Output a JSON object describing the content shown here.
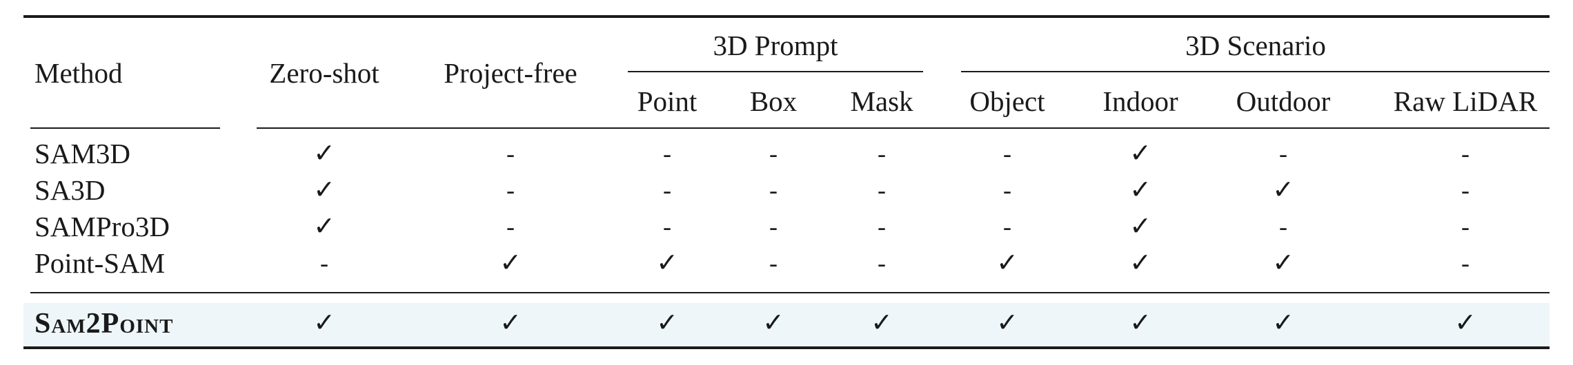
{
  "headers": {
    "method": "Method",
    "zero_shot": "Zero-shot",
    "project_free": "Project-free",
    "prompt_group": "3D Prompt",
    "scenario_group": "3D Scenario",
    "point": "Point",
    "box": "Box",
    "mask": "Mask",
    "object": "Object",
    "indoor": "Indoor",
    "outdoor": "Outdoor",
    "raw_lidar": "Raw LiDAR"
  },
  "rows": [
    {
      "method": "SAM3D",
      "cells": [
        "✓",
        "-",
        "-",
        "-",
        "-",
        "-",
        "✓",
        "-",
        "-"
      ]
    },
    {
      "method": "SA3D",
      "cells": [
        "✓",
        "-",
        "-",
        "-",
        "-",
        "-",
        "✓",
        "✓",
        "-"
      ]
    },
    {
      "method": "SAMPro3D",
      "cells": [
        "✓",
        "-",
        "-",
        "-",
        "-",
        "-",
        "✓",
        "-",
        "-"
      ]
    },
    {
      "method": "Point-SAM",
      "cells": [
        "-",
        "✓",
        "✓",
        "-",
        "-",
        "✓",
        "✓",
        "✓",
        "-"
      ]
    }
  ],
  "highlight_row": {
    "method": "Sam2Point",
    "cells": [
      "✓",
      "✓",
      "✓",
      "✓",
      "✓",
      "✓",
      "✓",
      "✓",
      "✓"
    ]
  }
}
